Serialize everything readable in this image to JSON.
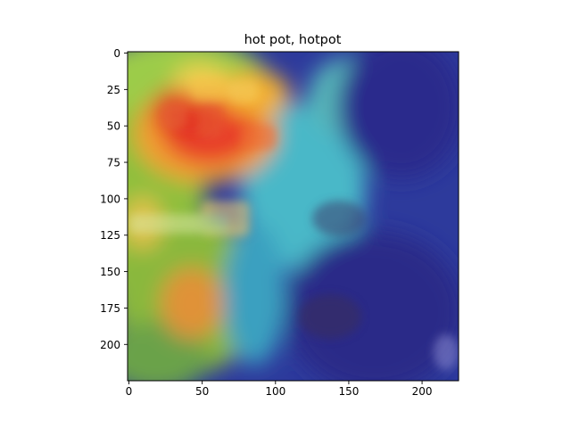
{
  "chart_data": {
    "type": "heatmap",
    "title": "hot pot, hotpot",
    "xlabel": "",
    "ylabel": "",
    "xlim": [
      0,
      224
    ],
    "ylim": [
      224,
      0
    ],
    "x_ticks": [
      0,
      50,
      100,
      150,
      200
    ],
    "y_ticks": [
      0,
      25,
      50,
      75,
      100,
      125,
      150,
      175,
      200
    ],
    "grid": false,
    "image_description": "photo of a hot pot dish overlaid with a jet-colormap class-activation heatmap",
    "hotspots": [
      {
        "x": 55,
        "y": 60,
        "intensity": 1.0
      },
      {
        "x": 35,
        "y": 45,
        "intensity": 0.85
      },
      {
        "x": 85,
        "y": 35,
        "intensity": 0.75
      },
      {
        "x": 45,
        "y": 170,
        "intensity": 0.7
      },
      {
        "x": 15,
        "y": 105,
        "intensity": 0.55
      }
    ],
    "colors": {
      "hot": "#d7191c",
      "warm": "#fdae61",
      "mid": "#a6d96a",
      "cool": "#2b83ba",
      "cold": "#2c2c8c"
    }
  }
}
